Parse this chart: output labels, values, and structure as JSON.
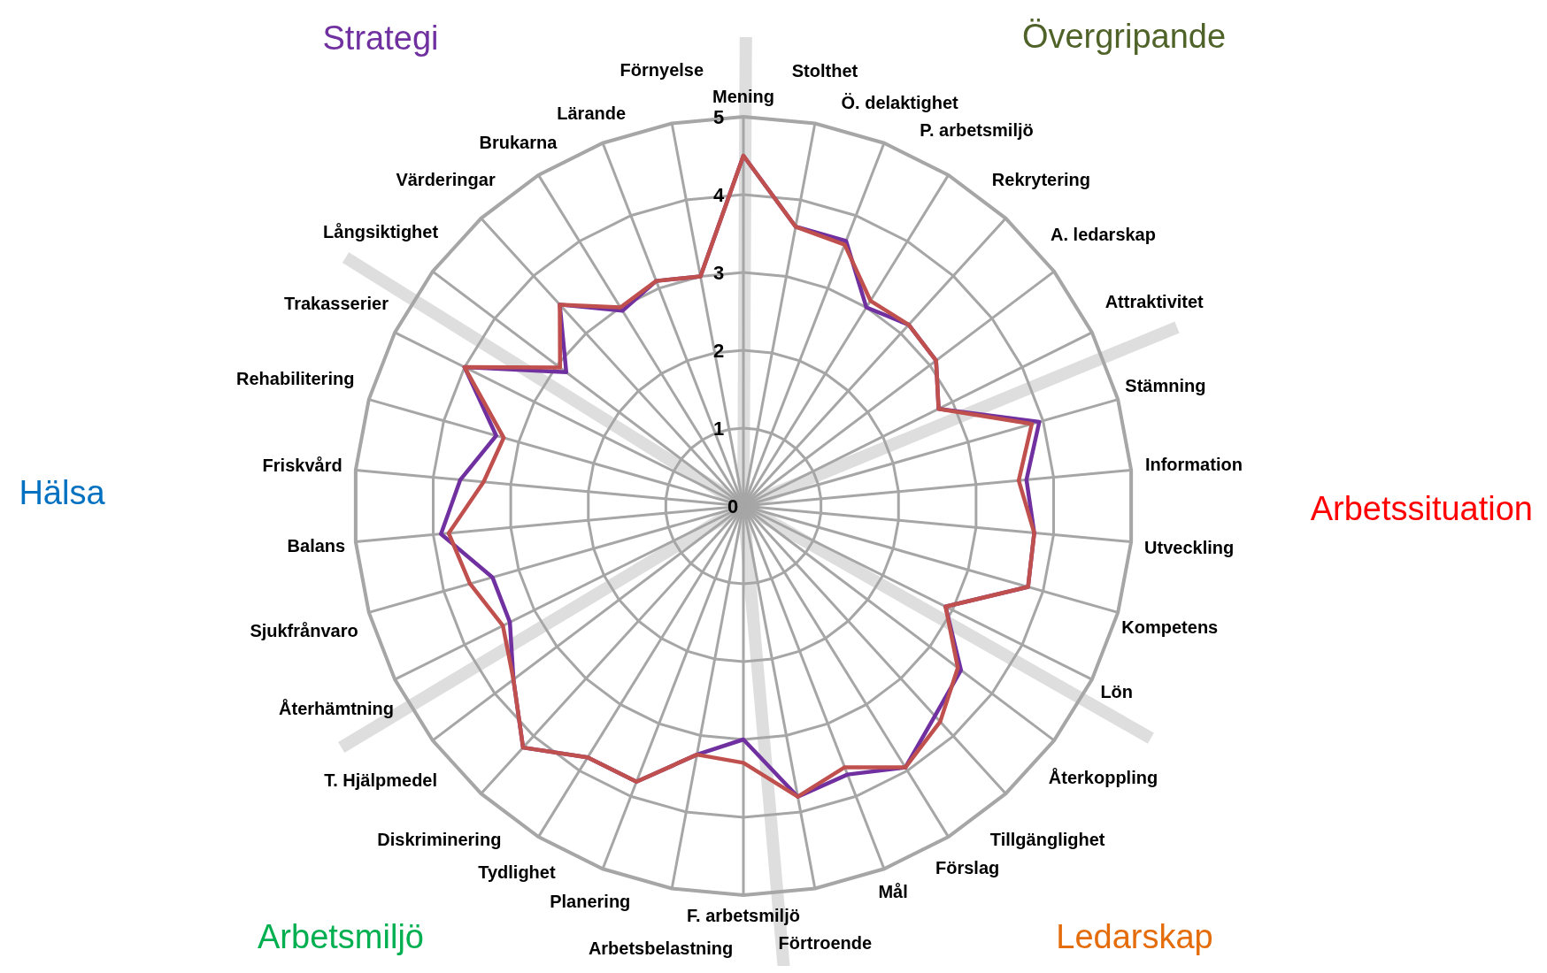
{
  "chart_data": {
    "type": "radar",
    "categories": [
      "Mening",
      "Stolthet",
      "Ö. delaktighet",
      "P. arbetsmiljö",
      "Rekrytering",
      "A. ledarskap",
      "Attraktivitet",
      "Stämning",
      "Information",
      "Utveckling",
      "Kompetens",
      "Lön",
      "Återkoppling",
      "Tillgänglighet",
      "Förslag",
      "Mål",
      "Förtroende",
      "F. arbetsmiljö",
      "Arbetsbelastning",
      "Planering",
      "Tydlighet",
      "Diskriminering",
      "T. Hjälpmedel",
      "Återhämtning",
      "Sjukfrånvaro",
      "Balans",
      "Friskvård",
      "Rehabilitering",
      "Trakasserier",
      "Långsiktighet",
      "Värderingar",
      "Brukarna",
      "Lärande",
      "Förnyelse"
    ],
    "series": [
      {
        "color": "#7030a0",
        "values": [
          4.5,
          3.65,
          3.65,
          3.0,
          3.15,
          3.1,
          2.8,
          3.95,
          3.65,
          3.75,
          3.8,
          2.9,
          3.5,
          3.65,
          3.95,
          3.7,
          3.8,
          3.0,
          3.25,
          3.8,
          3.8,
          4.2,
          3.7,
          3.35,
          3.35,
          3.9,
          3.65,
          3.3,
          4.0,
          2.85,
          3.5,
          2.95,
          3.1,
          3.0
        ]
      },
      {
        "color": "#c0504d",
        "values": [
          4.5,
          3.65,
          3.6,
          3.1,
          3.15,
          3.1,
          2.8,
          3.85,
          3.55,
          3.75,
          3.8,
          2.9,
          3.45,
          3.75,
          3.95,
          3.6,
          3.8,
          3.3,
          3.25,
          3.8,
          3.8,
          4.2,
          3.7,
          3.45,
          3.65,
          3.8,
          3.35,
          3.2,
          4.0,
          2.95,
          3.5,
          3.0,
          3.1,
          3.0
        ]
      }
    ],
    "ylim": [
      0,
      5
    ],
    "yticks": [
      0,
      1,
      2,
      3,
      4,
      5
    ],
    "grid": true,
    "annotations": [
      "Strategi",
      "Övergripande",
      "Arbetssituation",
      "Ledarskap",
      "Arbetsmiljö",
      "Hälsa"
    ]
  }
}
